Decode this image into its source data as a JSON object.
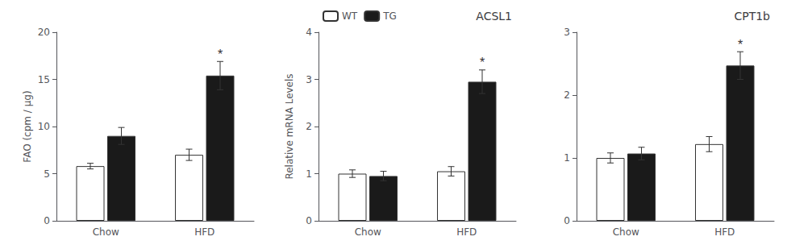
{
  "chart_data": [
    {
      "type": "bar",
      "ylabel": "FAO (cpm / µg)",
      "categories": [
        "Chow",
        "HFD"
      ],
      "series": [
        {
          "name": "WT",
          "color": "#ffffff",
          "values": [
            5.8,
            7.0
          ],
          "errors": [
            0.3,
            0.6
          ]
        },
        {
          "name": "TG",
          "color": "#1a1a1a",
          "values": [
            9.0,
            15.4
          ],
          "errors": [
            0.9,
            1.5
          ]
        }
      ],
      "annotations": [
        {
          "text": "*",
          "series": "TG",
          "category": "HFD"
        }
      ],
      "ylim": [
        0,
        20
      ],
      "yticks": [
        0,
        5,
        10,
        15,
        20
      ],
      "grid": false
    },
    {
      "type": "bar",
      "title": "ACSL1",
      "ylabel": "Relative mRNA Levels",
      "categories": [
        "Chow",
        "HFD"
      ],
      "series": [
        {
          "name": "WT",
          "color": "#ffffff",
          "values": [
            1.0,
            1.05
          ],
          "errors": [
            0.08,
            0.1
          ]
        },
        {
          "name": "TG",
          "color": "#1a1a1a",
          "values": [
            0.95,
            2.95
          ],
          "errors": [
            0.1,
            0.25
          ]
        }
      ],
      "annotations": [
        {
          "text": "*",
          "series": "TG",
          "category": "HFD"
        }
      ],
      "ylim": [
        0,
        4
      ],
      "yticks": [
        0,
        1,
        2,
        3,
        4
      ],
      "grid": false,
      "legend": "upper left"
    },
    {
      "type": "bar",
      "title": "CPT1b",
      "categories": [
        "Chow",
        "HFD"
      ],
      "series": [
        {
          "name": "WT",
          "color": "#ffffff",
          "values": [
            1.0,
            1.22
          ],
          "errors": [
            0.08,
            0.12
          ]
        },
        {
          "name": "TG",
          "color": "#1a1a1a",
          "values": [
            1.07,
            2.47
          ],
          "errors": [
            0.1,
            0.22
          ]
        }
      ],
      "annotations": [
        {
          "text": "*",
          "series": "TG",
          "category": "HFD"
        }
      ],
      "ylim": [
        0,
        3
      ],
      "yticks": [
        0,
        1,
        2,
        3
      ],
      "grid": false
    }
  ]
}
